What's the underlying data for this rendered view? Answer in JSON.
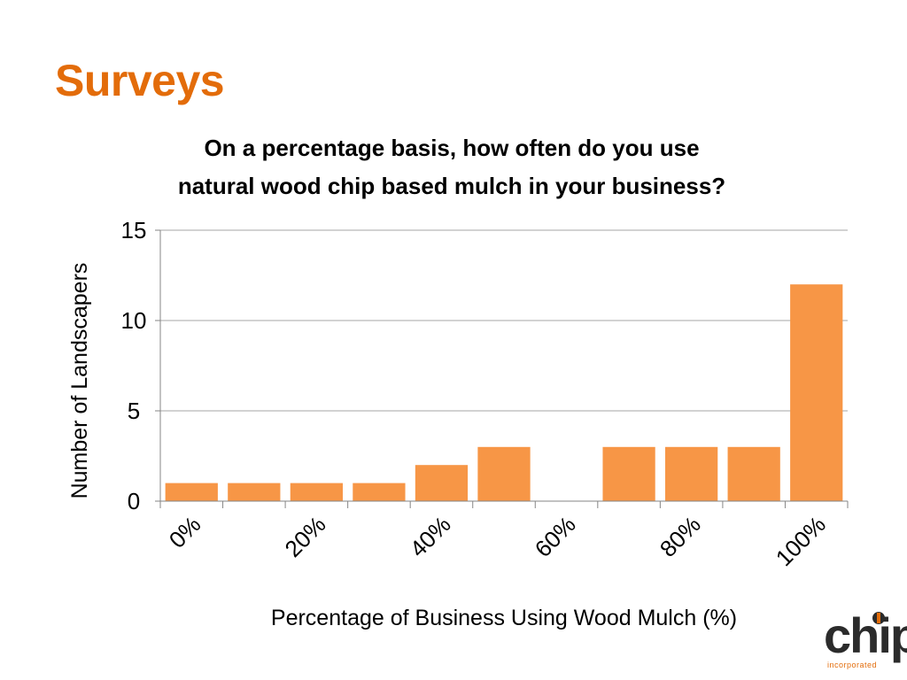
{
  "slide": {
    "title": "Surveys"
  },
  "chart_data": {
    "type": "bar",
    "title_lines": [
      "On a percentage basis, how often do you use",
      "natural wood chip based mulch in your business?"
    ],
    "xlabel": "Percentage of Business Using Wood Mulch (%)",
    "ylabel": "Number of Landscapers",
    "categories": [
      "0%",
      "10%",
      "20%",
      "30%",
      "40%",
      "50%",
      "60%",
      "70%",
      "80%",
      "90%",
      "100%"
    ],
    "values": [
      1,
      1,
      1,
      1,
      2,
      3,
      0,
      3,
      3,
      3,
      12
    ],
    "x_tick_labels": [
      {
        "category_index": 0,
        "label": "0%"
      },
      {
        "category_index": 2,
        "label": "20%"
      },
      {
        "category_index": 4,
        "label": "40%"
      },
      {
        "category_index": 6,
        "label": "60%"
      },
      {
        "category_index": 8,
        "label": "80%"
      },
      {
        "category_index": 10,
        "label": "100%"
      }
    ],
    "y_ticks": [
      0,
      5,
      10,
      15
    ],
    "ylim": [
      0,
      15
    ],
    "grid": true,
    "legend": "none",
    "bar_color": "#f79646",
    "grid_color": "#a6a6a6"
  },
  "logo": {
    "text": "chip",
    "subtext": "incorporated"
  }
}
